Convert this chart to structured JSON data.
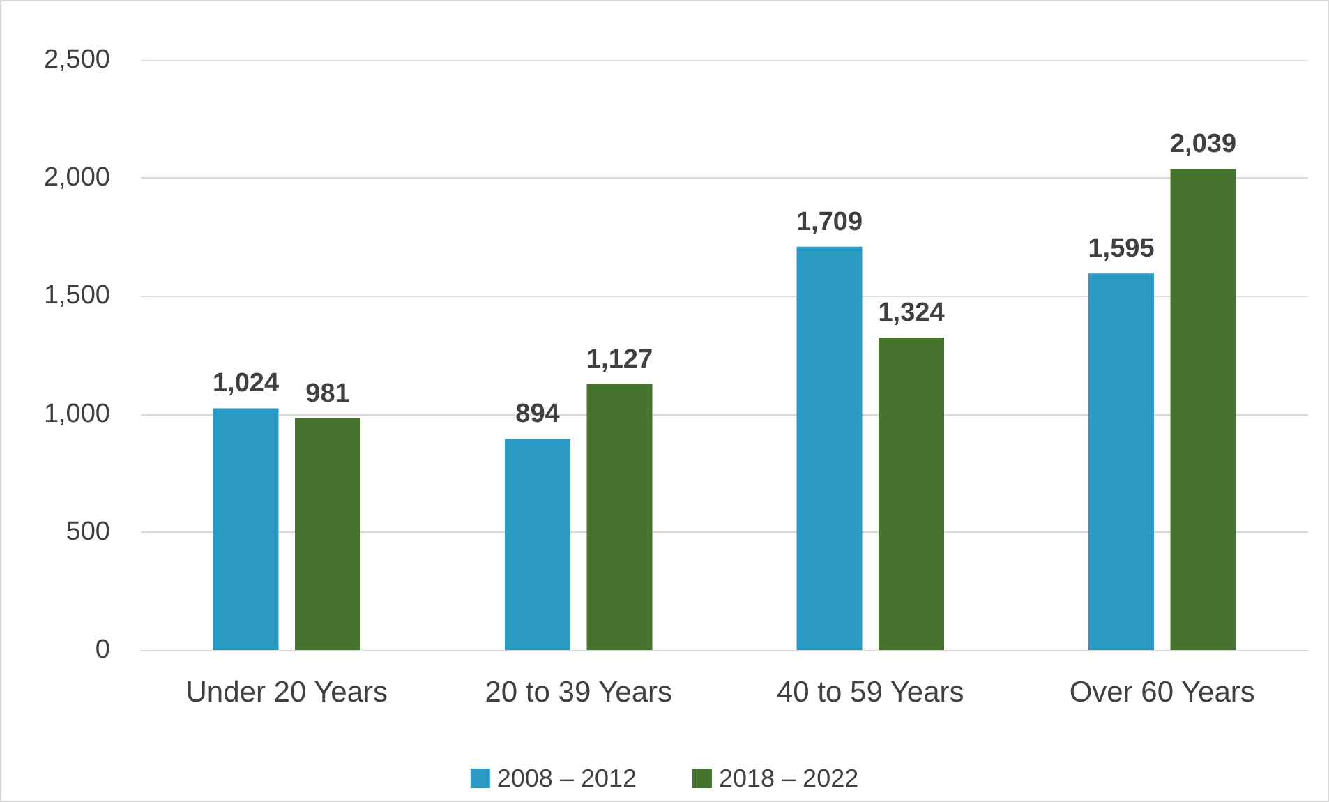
{
  "chart_data": {
    "type": "bar",
    "categories": [
      "Under 20 Years",
      "20 to 39 Years",
      "40 to 59 Years",
      "Over 60 Years"
    ],
    "series": [
      {
        "name": "2008 – 2012",
        "color": "#2a9ac4",
        "values": [
          1024,
          894,
          1709,
          1595
        ],
        "value_labels": [
          "1,024",
          "894",
          "1,709",
          "1,595"
        ]
      },
      {
        "name": "2018 – 2022",
        "color": "#46742e",
        "values": [
          981,
          1127,
          1324,
          2039
        ],
        "value_labels": [
          "981",
          "1,127",
          "1,324",
          "2,039"
        ]
      }
    ],
    "ylim": [
      0,
      2500
    ],
    "yticks": [
      0,
      500,
      {
        "value": 1000,
        "label": "1,000"
      },
      {
        "value": 1500,
        "label": "1,500"
      },
      {
        "value": 2000,
        "label": "2,000"
      },
      {
        "value": 2500,
        "label": "2,500"
      }
    ],
    "grid": "y",
    "legend": "bottom"
  }
}
